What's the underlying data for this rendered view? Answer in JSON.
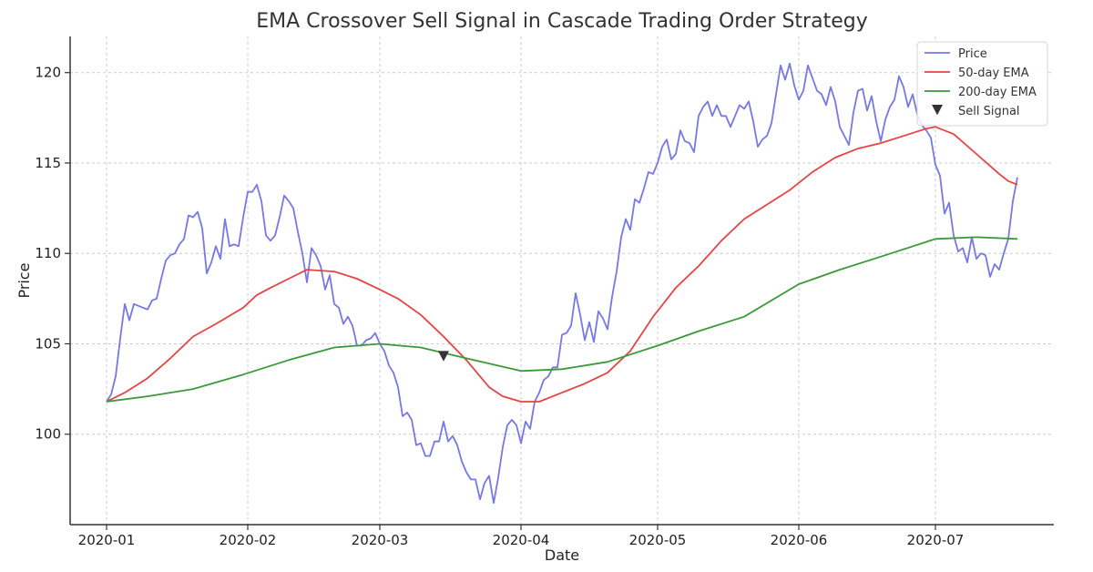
{
  "chart_data": {
    "type": "line",
    "title": "EMA Crossover Sell Signal in Cascade Trading Order Strategy",
    "xlabel": "Date",
    "ylabel": "Price",
    "xlim": [
      "2019-12-24",
      "2020-07-27"
    ],
    "ylim": [
      95,
      122
    ],
    "x_ticks": [
      "2020-01-01",
      "2020-02-01",
      "2020-03-01",
      "2020-04-01",
      "2020-05-01",
      "2020-06-01",
      "2020-07-01"
    ],
    "x_tick_labels": [
      "2020-01",
      "2020-02",
      "2020-03",
      "2020-04",
      "2020-05",
      "2020-06",
      "2020-07"
    ],
    "y_ticks": [
      100,
      105,
      110,
      115,
      120
    ],
    "y_tick_labels": [
      "100",
      "105",
      "110",
      "115",
      "120"
    ],
    "grid": true,
    "legend_position": "top-right",
    "series": [
      {
        "name": "Price",
        "color": "#7777e6",
        "points": [
          [
            "2020-01-01",
            101.8
          ],
          [
            "2020-01-02",
            102.2
          ],
          [
            "2020-01-03",
            103.2
          ],
          [
            "2020-01-04",
            105.3
          ],
          [
            "2020-01-05",
            107.2
          ],
          [
            "2020-01-06",
            106.3
          ],
          [
            "2020-01-07",
            107.2
          ],
          [
            "2020-01-09",
            107.0
          ],
          [
            "2020-01-10",
            106.9
          ],
          [
            "2020-01-11",
            107.4
          ],
          [
            "2020-01-12",
            107.5
          ],
          [
            "2020-01-13",
            108.6
          ],
          [
            "2020-01-14",
            109.6
          ],
          [
            "2020-01-15",
            109.9
          ],
          [
            "2020-01-16",
            110.0
          ],
          [
            "2020-01-17",
            110.5
          ],
          [
            "2020-01-18",
            110.8
          ],
          [
            "2020-01-19",
            112.1
          ],
          [
            "2020-01-20",
            112.0
          ],
          [
            "2020-01-21",
            112.3
          ],
          [
            "2020-01-22",
            111.4
          ],
          [
            "2020-01-23",
            108.9
          ],
          [
            "2020-01-24",
            109.5
          ],
          [
            "2020-01-25",
            110.4
          ],
          [
            "2020-01-26",
            109.7
          ],
          [
            "2020-01-27",
            111.9
          ],
          [
            "2020-01-28",
            110.4
          ],
          [
            "2020-01-29",
            110.5
          ],
          [
            "2020-01-30",
            110.4
          ],
          [
            "2020-01-31",
            112.0
          ],
          [
            "2020-02-01",
            113.4
          ],
          [
            "2020-02-02",
            113.4
          ],
          [
            "2020-02-03",
            113.8
          ],
          [
            "2020-02-04",
            112.9
          ],
          [
            "2020-02-05",
            111.0
          ],
          [
            "2020-02-06",
            110.7
          ],
          [
            "2020-02-07",
            111.0
          ],
          [
            "2020-02-08",
            112.0
          ],
          [
            "2020-02-09",
            113.2
          ],
          [
            "2020-02-10",
            112.9
          ],
          [
            "2020-02-11",
            112.5
          ],
          [
            "2020-02-12",
            111.2
          ],
          [
            "2020-02-13",
            110.0
          ],
          [
            "2020-02-14",
            108.4
          ],
          [
            "2020-02-15",
            110.3
          ],
          [
            "2020-02-16",
            109.9
          ],
          [
            "2020-02-17",
            109.3
          ],
          [
            "2020-02-18",
            108.0
          ],
          [
            "2020-02-19",
            108.8
          ],
          [
            "2020-02-20",
            107.2
          ],
          [
            "2020-02-21",
            107.0
          ],
          [
            "2020-02-22",
            106.1
          ],
          [
            "2020-02-23",
            106.5
          ],
          [
            "2020-02-24",
            106.0
          ],
          [
            "2020-02-25",
            104.9
          ],
          [
            "2020-02-26",
            104.9
          ],
          [
            "2020-02-27",
            105.2
          ],
          [
            "2020-02-28",
            105.3
          ],
          [
            "2020-02-29",
            105.6
          ],
          [
            "2020-03-01",
            105.0
          ],
          [
            "2020-03-02",
            104.6
          ],
          [
            "2020-03-03",
            103.8
          ],
          [
            "2020-03-04",
            103.4
          ],
          [
            "2020-03-05",
            102.6
          ],
          [
            "2020-03-06",
            101.0
          ],
          [
            "2020-03-07",
            101.2
          ],
          [
            "2020-03-08",
            100.8
          ],
          [
            "2020-03-09",
            99.4
          ],
          [
            "2020-03-10",
            99.5
          ],
          [
            "2020-03-11",
            98.8
          ],
          [
            "2020-03-12",
            98.8
          ],
          [
            "2020-03-13",
            99.6
          ],
          [
            "2020-03-14",
            99.6
          ],
          [
            "2020-03-15",
            100.7
          ],
          [
            "2020-03-16",
            99.6
          ],
          [
            "2020-03-17",
            99.9
          ],
          [
            "2020-03-18",
            99.4
          ],
          [
            "2020-03-19",
            98.5
          ],
          [
            "2020-03-20",
            97.9
          ],
          [
            "2020-03-21",
            97.5
          ],
          [
            "2020-03-22",
            97.5
          ],
          [
            "2020-03-23",
            96.4
          ],
          [
            "2020-03-24",
            97.3
          ],
          [
            "2020-03-25",
            97.7
          ],
          [
            "2020-03-26",
            96.2
          ],
          [
            "2020-03-27",
            97.6
          ],
          [
            "2020-03-28",
            99.3
          ],
          [
            "2020-03-29",
            100.5
          ],
          [
            "2020-03-30",
            100.8
          ],
          [
            "2020-03-31",
            100.5
          ],
          [
            "2020-04-01",
            99.5
          ],
          [
            "2020-04-02",
            100.7
          ],
          [
            "2020-04-03",
            100.3
          ],
          [
            "2020-04-04",
            101.8
          ],
          [
            "2020-04-05",
            102.3
          ],
          [
            "2020-04-06",
            103.0
          ],
          [
            "2020-04-07",
            103.2
          ],
          [
            "2020-04-08",
            103.7
          ],
          [
            "2020-04-09",
            103.7
          ],
          [
            "2020-04-10",
            105.5
          ],
          [
            "2020-04-11",
            105.6
          ],
          [
            "2020-04-12",
            106.0
          ],
          [
            "2020-04-13",
            107.8
          ],
          [
            "2020-04-14",
            106.6
          ],
          [
            "2020-04-15",
            105.2
          ],
          [
            "2020-04-16",
            106.2
          ],
          [
            "2020-04-17",
            105.1
          ],
          [
            "2020-04-18",
            106.8
          ],
          [
            "2020-04-19",
            106.4
          ],
          [
            "2020-04-20",
            105.8
          ],
          [
            "2020-04-21",
            107.6
          ],
          [
            "2020-04-22",
            109.0
          ],
          [
            "2020-04-23",
            110.9
          ],
          [
            "2020-04-24",
            111.9
          ],
          [
            "2020-04-25",
            111.3
          ],
          [
            "2020-04-26",
            113.0
          ],
          [
            "2020-04-27",
            112.8
          ],
          [
            "2020-04-28",
            113.6
          ],
          [
            "2020-04-29",
            114.5
          ],
          [
            "2020-04-30",
            114.4
          ],
          [
            "2020-05-01",
            115.0
          ],
          [
            "2020-05-02",
            115.9
          ],
          [
            "2020-05-03",
            116.3
          ],
          [
            "2020-05-04",
            115.2
          ],
          [
            "2020-05-05",
            115.5
          ],
          [
            "2020-05-06",
            116.8
          ],
          [
            "2020-05-07",
            116.2
          ],
          [
            "2020-05-08",
            116.1
          ],
          [
            "2020-05-09",
            115.6
          ],
          [
            "2020-05-10",
            117.6
          ],
          [
            "2020-05-11",
            118.1
          ],
          [
            "2020-05-12",
            118.4
          ],
          [
            "2020-05-13",
            117.6
          ],
          [
            "2020-05-14",
            118.2
          ],
          [
            "2020-05-15",
            117.6
          ],
          [
            "2020-05-16",
            117.6
          ],
          [
            "2020-05-17",
            117.0
          ],
          [
            "2020-05-18",
            117.6
          ],
          [
            "2020-05-19",
            118.2
          ],
          [
            "2020-05-20",
            118.0
          ],
          [
            "2020-05-21",
            118.4
          ],
          [
            "2020-05-22",
            117.3
          ],
          [
            "2020-05-23",
            115.9
          ],
          [
            "2020-05-24",
            116.3
          ],
          [
            "2020-05-25",
            116.5
          ],
          [
            "2020-05-26",
            117.2
          ],
          [
            "2020-05-27",
            118.8
          ],
          [
            "2020-05-28",
            120.4
          ],
          [
            "2020-05-29",
            119.6
          ],
          [
            "2020-05-30",
            120.5
          ],
          [
            "2020-05-31",
            119.3
          ],
          [
            "2020-06-01",
            118.5
          ],
          [
            "2020-06-02",
            119.0
          ],
          [
            "2020-06-03",
            120.4
          ],
          [
            "2020-06-04",
            119.7
          ],
          [
            "2020-06-05",
            119.0
          ],
          [
            "2020-06-06",
            118.8
          ],
          [
            "2020-06-07",
            118.2
          ],
          [
            "2020-06-08",
            119.2
          ],
          [
            "2020-06-09",
            118.4
          ],
          [
            "2020-06-10",
            117.0
          ],
          [
            "2020-06-11",
            116.5
          ],
          [
            "2020-06-12",
            116.0
          ],
          [
            "2020-06-13",
            117.8
          ],
          [
            "2020-06-14",
            119.0
          ],
          [
            "2020-06-15",
            119.1
          ],
          [
            "2020-06-16",
            117.9
          ],
          [
            "2020-06-17",
            118.7
          ],
          [
            "2020-06-18",
            117.3
          ],
          [
            "2020-06-19",
            116.2
          ],
          [
            "2020-06-20",
            117.4
          ],
          [
            "2020-06-21",
            118.1
          ],
          [
            "2020-06-22",
            118.5
          ],
          [
            "2020-06-23",
            119.8
          ],
          [
            "2020-06-24",
            119.2
          ],
          [
            "2020-06-25",
            118.1
          ],
          [
            "2020-06-26",
            118.8
          ],
          [
            "2020-06-27",
            117.7
          ],
          [
            "2020-06-28",
            117.1
          ],
          [
            "2020-06-29",
            116.8
          ],
          [
            "2020-06-30",
            116.4
          ],
          [
            "2020-07-01",
            114.9
          ],
          [
            "2020-07-02",
            114.3
          ],
          [
            "2020-07-03",
            112.2
          ],
          [
            "2020-07-04",
            112.8
          ],
          [
            "2020-07-05",
            111.0
          ],
          [
            "2020-07-06",
            110.1
          ],
          [
            "2020-07-07",
            110.3
          ],
          [
            "2020-07-08",
            109.5
          ],
          [
            "2020-07-09",
            110.9
          ],
          [
            "2020-07-10",
            109.7
          ],
          [
            "2020-07-11",
            110.0
          ],
          [
            "2020-07-12",
            109.9
          ],
          [
            "2020-07-13",
            108.7
          ],
          [
            "2020-07-14",
            109.4
          ],
          [
            "2020-07-15",
            109.1
          ],
          [
            "2020-07-16",
            110.0
          ],
          [
            "2020-07-17",
            110.8
          ],
          [
            "2020-07-18",
            112.9
          ],
          [
            "2020-07-19",
            114.2
          ]
        ]
      },
      {
        "name": "50-day EMA",
        "color": "#e64444",
        "points": [
          [
            "2020-01-01",
            101.8
          ],
          [
            "2020-01-05",
            102.3
          ],
          [
            "2020-01-10",
            103.1
          ],
          [
            "2020-01-15",
            104.2
          ],
          [
            "2020-01-20",
            105.4
          ],
          [
            "2020-01-25",
            106.1
          ],
          [
            "2020-01-31",
            107.0
          ],
          [
            "2020-02-03",
            107.7
          ],
          [
            "2020-02-06",
            108.1
          ],
          [
            "2020-02-10",
            108.6
          ],
          [
            "2020-02-14",
            109.1
          ],
          [
            "2020-02-20",
            109.0
          ],
          [
            "2020-02-25",
            108.6
          ],
          [
            "2020-03-01",
            108.0
          ],
          [
            "2020-03-05",
            107.5
          ],
          [
            "2020-03-10",
            106.6
          ],
          [
            "2020-03-15",
            105.4
          ],
          [
            "2020-03-20",
            104.1
          ],
          [
            "2020-03-25",
            102.6
          ],
          [
            "2020-03-28",
            102.1
          ],
          [
            "2020-04-01",
            101.8
          ],
          [
            "2020-04-05",
            101.8
          ],
          [
            "2020-04-10",
            102.3
          ],
          [
            "2020-04-15",
            102.8
          ],
          [
            "2020-04-20",
            103.4
          ],
          [
            "2020-04-25",
            104.6
          ],
          [
            "2020-04-30",
            106.5
          ],
          [
            "2020-05-05",
            108.1
          ],
          [
            "2020-05-10",
            109.3
          ],
          [
            "2020-05-15",
            110.7
          ],
          [
            "2020-05-20",
            111.9
          ],
          [
            "2020-05-25",
            112.7
          ],
          [
            "2020-05-30",
            113.5
          ],
          [
            "2020-06-04",
            114.5
          ],
          [
            "2020-06-09",
            115.3
          ],
          [
            "2020-06-14",
            115.8
          ],
          [
            "2020-06-19",
            116.1
          ],
          [
            "2020-06-24",
            116.5
          ],
          [
            "2020-06-29",
            116.9
          ],
          [
            "2020-07-01",
            117.0
          ],
          [
            "2020-07-05",
            116.6
          ],
          [
            "2020-07-10",
            115.5
          ],
          [
            "2020-07-15",
            114.4
          ],
          [
            "2020-07-17",
            114.0
          ],
          [
            "2020-07-19",
            113.8
          ]
        ]
      },
      {
        "name": "200-day EMA",
        "color": "#3a9a3a",
        "points": [
          [
            "2020-01-01",
            101.8
          ],
          [
            "2020-01-10",
            102.1
          ],
          [
            "2020-01-20",
            102.5
          ],
          [
            "2020-01-31",
            103.3
          ],
          [
            "2020-02-10",
            104.1
          ],
          [
            "2020-02-20",
            104.8
          ],
          [
            "2020-03-01",
            105.0
          ],
          [
            "2020-03-10",
            104.8
          ],
          [
            "2020-03-20",
            104.2
          ],
          [
            "2020-04-01",
            103.5
          ],
          [
            "2020-04-10",
            103.6
          ],
          [
            "2020-04-20",
            104.0
          ],
          [
            "2020-05-01",
            104.9
          ],
          [
            "2020-05-10",
            105.7
          ],
          [
            "2020-05-20",
            106.5
          ],
          [
            "2020-06-01",
            108.3
          ],
          [
            "2020-06-10",
            109.1
          ],
          [
            "2020-06-20",
            109.9
          ],
          [
            "2020-07-01",
            110.8
          ],
          [
            "2020-07-10",
            110.9
          ],
          [
            "2020-07-19",
            110.8
          ]
        ]
      }
    ],
    "markers": [
      {
        "name": "Sell Signal",
        "symbol": "triangle-down",
        "color": "#333333",
        "x": "2020-03-15",
        "y": 104.3
      }
    ]
  }
}
